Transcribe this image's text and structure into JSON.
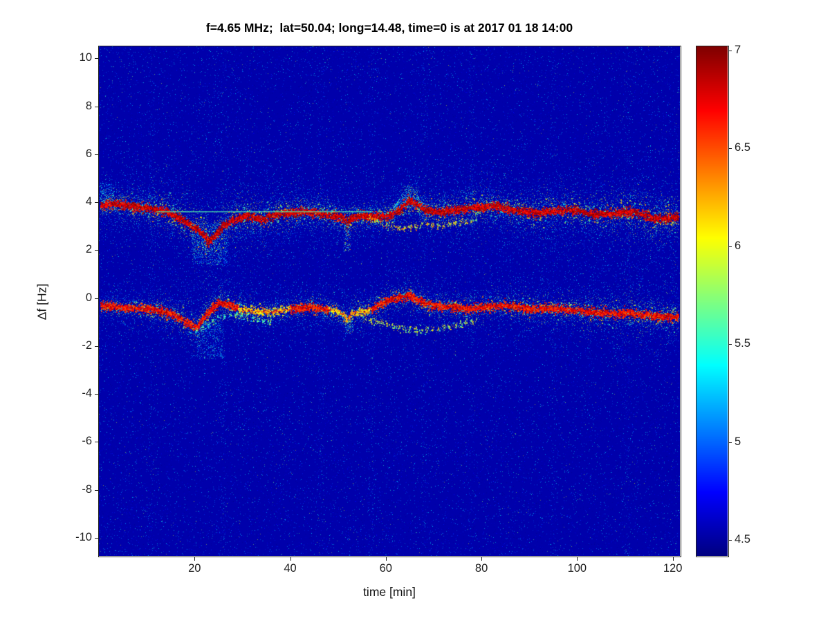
{
  "chart_data": {
    "type": "heatmap",
    "title": "f=4.65 MHz;  lat=50.04; long=14.48, time=0 is at 2017 01 18 14:00",
    "xlabel": "time [min]",
    "ylabel": "Δf [Hz]",
    "xlim": [
      0,
      121.5
    ],
    "ylim": [
      -10.75,
      10.5
    ],
    "x_ticks": [
      20,
      40,
      60,
      80,
      100,
      120
    ],
    "y_ticks": [
      10,
      8,
      6,
      4,
      2,
      0,
      -2,
      -4,
      -6,
      -8,
      -10
    ],
    "colorbar": {
      "range": [
        4.42,
        7.02
      ],
      "ticks": [
        "7",
        "6.5",
        "6",
        "5.5",
        "5",
        "4.5"
      ]
    },
    "background_value": 4.53,
    "noise": {
      "speckle_count": 46000,
      "bright_count": 2600,
      "streaks": [
        11,
        26,
        46.5,
        57,
        68,
        78,
        95,
        110.5
      ]
    },
    "series": [
      {
        "name": "upper-doppler-trace",
        "role": "main",
        "halo_density": 1.0,
        "stroke_value": 6.9,
        "core_value": [
          6.6,
          7.02
        ],
        "points": [
          [
            0.3,
            3.85
          ],
          [
            2,
            3.95
          ],
          [
            5,
            3.9
          ],
          [
            8,
            3.8
          ],
          [
            11,
            3.75
          ],
          [
            14,
            3.6
          ],
          [
            17,
            3.35
          ],
          [
            19,
            3.05
          ],
          [
            21,
            2.8
          ],
          [
            23,
            2.35
          ],
          [
            24.5,
            2.7
          ],
          [
            26,
            3.05
          ],
          [
            28,
            3.25
          ],
          [
            31,
            3.45
          ],
          [
            34,
            3.3
          ],
          [
            37,
            3.5
          ],
          [
            40,
            3.55
          ],
          [
            43,
            3.6
          ],
          [
            46,
            3.55
          ],
          [
            49,
            3.45
          ],
          [
            51,
            3.35
          ],
          [
            52,
            3.15
          ],
          [
            53,
            3.35
          ],
          [
            55,
            3.45
          ],
          [
            58,
            3.4
          ],
          [
            61,
            3.45
          ],
          [
            63,
            3.7
          ],
          [
            65,
            4.1
          ],
          [
            66,
            3.95
          ],
          [
            68,
            3.7
          ],
          [
            71,
            3.6
          ],
          [
            74,
            3.65
          ],
          [
            77,
            3.75
          ],
          [
            80,
            3.8
          ],
          [
            83,
            3.85
          ],
          [
            86,
            3.7
          ],
          [
            89,
            3.6
          ],
          [
            92,
            3.55
          ],
          [
            95,
            3.65
          ],
          [
            98,
            3.7
          ],
          [
            101,
            3.6
          ],
          [
            104,
            3.5
          ],
          [
            107,
            3.55
          ],
          [
            110,
            3.6
          ],
          [
            113,
            3.55
          ],
          [
            116,
            3.35
          ],
          [
            118,
            3.3
          ],
          [
            121.2,
            3.4
          ]
        ],
        "spread_points": [
          [
            0,
            0.4
          ],
          [
            10,
            0.45
          ],
          [
            15,
            0.7
          ],
          [
            22,
            0.95
          ],
          [
            28,
            0.8
          ],
          [
            34,
            0.65
          ],
          [
            42,
            0.5
          ],
          [
            50,
            0.45
          ],
          [
            56,
            0.4
          ],
          [
            62,
            0.45
          ],
          [
            70,
            0.5
          ],
          [
            78,
            0.6
          ],
          [
            86,
            0.6
          ],
          [
            94,
            0.6
          ],
          [
            102,
            0.65
          ],
          [
            108,
            0.75
          ],
          [
            114,
            0.85
          ],
          [
            121.4,
            0.8
          ]
        ]
      },
      {
        "name": "lower-doppler-trace",
        "role": "main",
        "halo_density": 0.75,
        "stroke_value": 6.72,
        "core_value": [
          6.45,
          6.95
        ],
        "core_weak_ranges": [
          [
            29,
            40
          ],
          [
            48,
            57
          ]
        ],
        "points": [
          [
            0.3,
            -0.3
          ],
          [
            3,
            -0.35
          ],
          [
            6,
            -0.4
          ],
          [
            9,
            -0.45
          ],
          [
            12,
            -0.5
          ],
          [
            15,
            -0.65
          ],
          [
            17,
            -0.85
          ],
          [
            19,
            -1.1
          ],
          [
            20.5,
            -1.25
          ],
          [
            22,
            -0.8
          ],
          [
            23.5,
            -0.45
          ],
          [
            25,
            -0.2
          ],
          [
            27,
            -0.25
          ],
          [
            29,
            -0.4
          ],
          [
            32,
            -0.55
          ],
          [
            35,
            -0.6
          ],
          [
            38,
            -0.5
          ],
          [
            41,
            -0.45
          ],
          [
            44,
            -0.35
          ],
          [
            47,
            -0.45
          ],
          [
            50,
            -0.55
          ],
          [
            52,
            -0.9
          ],
          [
            53,
            -0.6
          ],
          [
            55,
            -0.55
          ],
          [
            57,
            -0.45
          ],
          [
            59,
            -0.25
          ],
          [
            61,
            -0.05
          ],
          [
            63,
            0.05
          ],
          [
            65,
            0.1
          ],
          [
            67,
            -0.1
          ],
          [
            69,
            -0.25
          ],
          [
            72,
            -0.35
          ],
          [
            75,
            -0.4
          ],
          [
            78,
            -0.45
          ],
          [
            81,
            -0.35
          ],
          [
            84,
            -0.3
          ],
          [
            87,
            -0.35
          ],
          [
            90,
            -0.45
          ],
          [
            93,
            -0.4
          ],
          [
            96,
            -0.45
          ],
          [
            99,
            -0.5
          ],
          [
            102,
            -0.55
          ],
          [
            105,
            -0.6
          ],
          [
            108,
            -0.65
          ],
          [
            111,
            -0.6
          ],
          [
            114,
            -0.7
          ],
          [
            117,
            -0.75
          ],
          [
            121.2,
            -0.8
          ]
        ],
        "spread_points": [
          [
            0,
            0.25
          ],
          [
            12,
            0.35
          ],
          [
            18,
            0.55
          ],
          [
            24,
            0.45
          ],
          [
            32,
            0.35
          ],
          [
            44,
            0.3
          ],
          [
            52,
            0.4
          ],
          [
            60,
            0.45
          ],
          [
            68,
            0.4
          ],
          [
            78,
            0.45
          ],
          [
            88,
            0.5
          ],
          [
            98,
            0.5
          ],
          [
            106,
            0.6
          ],
          [
            114,
            0.65
          ],
          [
            121.4,
            0.6
          ]
        ]
      },
      {
        "name": "upper-secondary-trace",
        "role": "secondary",
        "value": [
          5.6,
          6.5
        ],
        "points": [
          [
            56,
            3.4
          ],
          [
            58,
            3.2
          ],
          [
            60,
            3.05
          ],
          [
            62,
            2.95
          ],
          [
            64,
            2.9
          ],
          [
            66,
            3.0
          ],
          [
            68,
            3.1
          ],
          [
            70,
            3.05
          ],
          [
            72,
            3.0
          ],
          [
            74,
            3.1
          ],
          [
            76,
            3.2
          ],
          [
            78,
            3.25
          ],
          [
            79,
            3.3
          ]
        ]
      },
      {
        "name": "lower-secondary-trace",
        "role": "secondary",
        "value": [
          5.5,
          6.3
        ],
        "points": [
          [
            55,
            -0.85
          ],
          [
            58,
            -1.0
          ],
          [
            61,
            -1.15
          ],
          [
            64,
            -1.3
          ],
          [
            67,
            -1.35
          ],
          [
            70,
            -1.3
          ],
          [
            73,
            -1.2
          ],
          [
            76,
            -1.05
          ],
          [
            79,
            -0.95
          ]
        ]
      },
      {
        "name": "lower-early-secondary",
        "role": "secondary",
        "value": [
          5.3,
          6.0
        ],
        "points": [
          [
            28,
            -0.65
          ],
          [
            31,
            -0.8
          ],
          [
            34,
            -0.95
          ],
          [
            36,
            -1.05
          ]
        ]
      },
      {
        "name": "lower-hook-arc",
        "role": "secondary",
        "value": [
          5.2,
          5.9
        ],
        "points": [
          [
            20,
            -1.45
          ],
          [
            22,
            -1.2
          ],
          [
            24,
            -0.95
          ],
          [
            26,
            -0.75
          ],
          [
            28,
            -0.65
          ]
        ]
      },
      {
        "name": "flat-reference-line",
        "role": "line",
        "value": 5.6,
        "points": [
          [
            12,
            3.62
          ],
          [
            57,
            3.62
          ]
        ]
      }
    ],
    "features": [
      {
        "name": "upper-dip-scatter",
        "shape": "rect",
        "t": [
          19.5,
          27
        ],
        "y": [
          1.35,
          3.1
        ],
        "count": 750,
        "v": [
          4.85,
          5.75
        ]
      },
      {
        "name": "upper-spike",
        "shape": "triangle",
        "t": [
          61.5,
          68.5
        ],
        "peak_t": 65,
        "y_base": 3.75,
        "y_peak": 4.85,
        "count": 430,
        "v": [
          4.9,
          5.95
        ]
      },
      {
        "name": "lower-dip-scatter",
        "shape": "rect",
        "t": [
          20.5,
          26
        ],
        "y": [
          -2.55,
          -1.0
        ],
        "count": 430,
        "v": [
          4.85,
          5.7
        ]
      },
      {
        "name": "upper-notch",
        "shape": "rect",
        "t": [
          51.3,
          52.7
        ],
        "y": [
          1.95,
          3.2
        ],
        "count": 150,
        "v": [
          4.9,
          6.6
        ]
      },
      {
        "name": "lower-notch",
        "shape": "rect",
        "t": [
          51.5,
          53.2
        ],
        "y": [
          -1.5,
          -0.7
        ],
        "count": 100,
        "v": [
          4.9,
          6.2
        ]
      },
      {
        "name": "upper-left-cloud",
        "shape": "rect",
        "t": [
          0.2,
          3
        ],
        "y": [
          3.9,
          4.8
        ],
        "count": 160,
        "v": [
          4.9,
          5.6
        ]
      },
      {
        "name": "upper-mid-bright",
        "shape": "rect",
        "t": [
          79,
          86
        ],
        "y": [
          3.6,
          3.95
        ],
        "count": 130,
        "v": [
          5.8,
          6.95
        ]
      },
      {
        "name": "upper-right-bright-1",
        "shape": "rect",
        "t": [
          107,
          113
        ],
        "y": [
          3.3,
          3.7
        ],
        "count": 170,
        "v": [
          5.8,
          7.0
        ]
      },
      {
        "name": "upper-right-bright-2",
        "shape": "rect",
        "t": [
          116,
          121.4
        ],
        "y": [
          3.05,
          3.6
        ],
        "count": 180,
        "v": [
          5.8,
          7.0
        ]
      },
      {
        "name": "lower-right-bright",
        "shape": "rect",
        "t": [
          112,
          121.4
        ],
        "y": [
          -1.05,
          -0.5
        ],
        "count": 170,
        "v": [
          5.6,
          6.9
        ]
      }
    ]
  }
}
